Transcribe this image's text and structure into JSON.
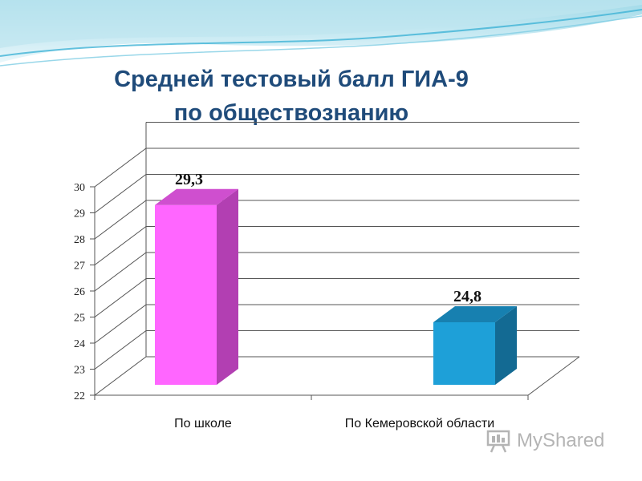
{
  "title": {
    "line1": "Средней тестовый балл ГИА-9",
    "line2": "по обществознанию"
  },
  "watermark": "MyShared",
  "colors": {
    "title": "#1f4b7a",
    "bar_school": "#ff66ff",
    "bar_region": "#1ea0d8"
  },
  "chart_data": {
    "type": "bar",
    "categories": [
      "По школе",
      "По Кемеровской области"
    ],
    "values": [
      29.3,
      24.8
    ],
    "data_labels": [
      "29,3",
      "24,8"
    ],
    "y_ticks": [
      "22",
      "23",
      "24",
      "25",
      "26",
      "27",
      "28",
      "29",
      "30"
    ],
    "ylim": [
      22,
      31
    ],
    "grid": true,
    "legend": "none"
  }
}
